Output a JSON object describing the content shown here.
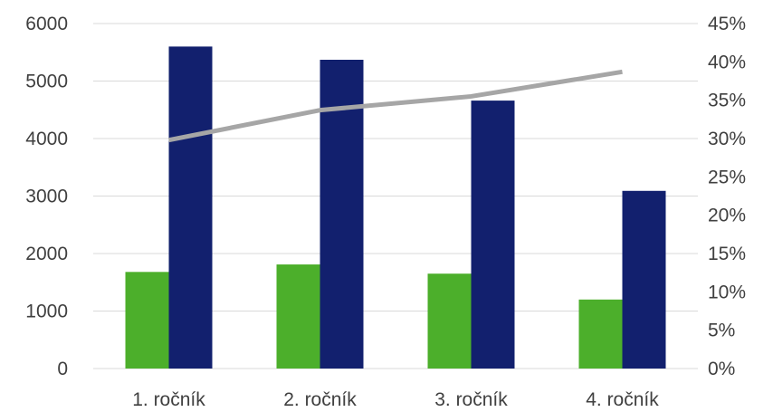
{
  "chart_data": {
    "type": "bar",
    "categories": [
      "1. ročník",
      "2. ročník",
      "3. ročník",
      "4. ročník"
    ],
    "series": [
      {
        "kind": "bar",
        "axis": "left",
        "color": "#4caf2b",
        "values": [
          1680,
          1810,
          1650,
          1200
        ]
      },
      {
        "kind": "bar",
        "axis": "left",
        "color": "#12206e",
        "values": [
          5600,
          5370,
          4660,
          3090
        ]
      },
      {
        "kind": "line",
        "axis": "right",
        "color": "#a6a6a6",
        "values": [
          29.8,
          33.7,
          35.5,
          38.7
        ]
      }
    ],
    "left_axis": {
      "ylim": [
        0,
        6000
      ],
      "ticks": [
        0,
        1000,
        2000,
        3000,
        4000,
        5000,
        6000
      ],
      "tick_labels": [
        "0",
        "1000",
        "2000",
        "3000",
        "4000",
        "5000",
        "6000"
      ]
    },
    "right_axis": {
      "ylim": [
        0,
        45
      ],
      "ticks": [
        0,
        5,
        10,
        15,
        20,
        25,
        30,
        35,
        40,
        45
      ],
      "tick_labels": [
        "0%",
        "5%",
        "10%",
        "15%",
        "20%",
        "25%",
        "30%",
        "35%",
        "40%",
        "45%"
      ]
    },
    "grid": true,
    "legend": "none",
    "title": "",
    "xlabel": "",
    "ylabel": ""
  }
}
